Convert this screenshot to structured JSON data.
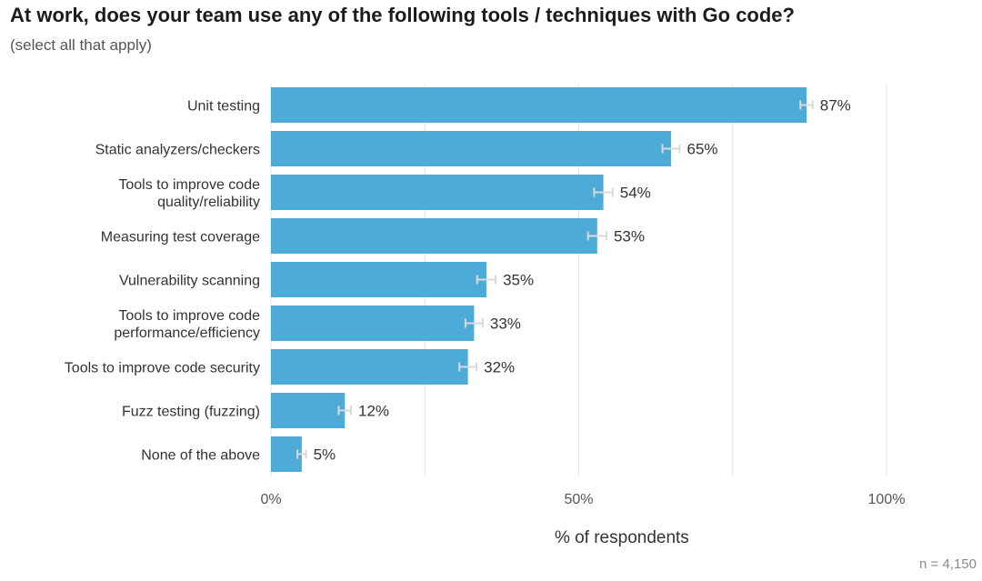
{
  "title": "At work, does your team use any of the following tools / techniques with Go code?",
  "subtitle": "(select all that apply)",
  "sample_size": "n =  4,150",
  "colors": {
    "bar": "#4eaad6",
    "error_bar": "#d9d9d9",
    "grid": "#e6e6e6",
    "text": "#333333",
    "axis_text": "#555555"
  },
  "chart_data": {
    "type": "bar",
    "orientation": "horizontal",
    "title": "At work, does your team use any of the following tools / techniques with Go code?",
    "subtitle": "(select all that apply)",
    "categories": [
      [
        "Unit testing"
      ],
      [
        "Static analyzers/checkers"
      ],
      [
        "Tools to improve code",
        "quality/reliability"
      ],
      [
        "Measuring test coverage"
      ],
      [
        "Vulnerability scanning"
      ],
      [
        "Tools to improve code",
        "performance/efficiency"
      ],
      [
        "Tools to improve code security"
      ],
      [
        "Fuzz testing (fuzzing)"
      ],
      [
        "None of the above"
      ]
    ],
    "values": [
      87,
      65,
      54,
      53,
      35,
      33,
      32,
      12,
      5
    ],
    "value_labels": [
      "87%",
      "65%",
      "54%",
      "53%",
      "35%",
      "33%",
      "32%",
      "12%",
      "5%"
    ],
    "error_margin": [
      1.0,
      1.4,
      1.5,
      1.5,
      1.5,
      1.4,
      1.4,
      1.0,
      0.7
    ],
    "xlabel": "% of respondents",
    "ylabel": "",
    "xlim": [
      0,
      100
    ],
    "xticks": [
      0,
      50,
      100
    ],
    "xtick_labels": [
      "0%",
      "50%",
      "100%"
    ],
    "gridlines": [
      0,
      25,
      50,
      75,
      100
    ],
    "grid": true,
    "legend": "none"
  }
}
